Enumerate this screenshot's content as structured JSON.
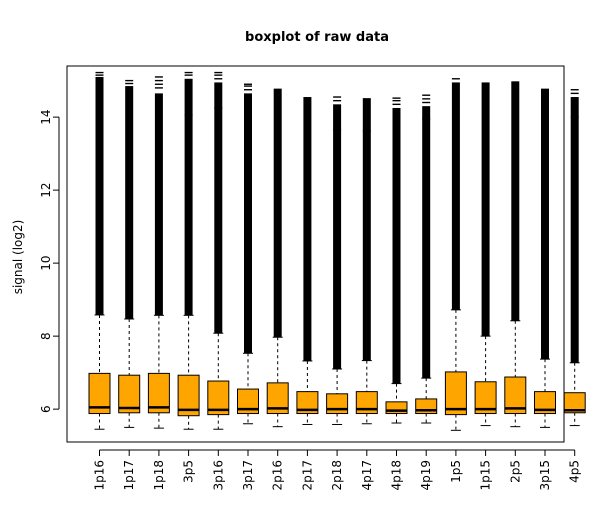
{
  "chart_data": {
    "type": "boxplot",
    "title": "boxplot of raw data",
    "xlabel": "",
    "ylabel": "signal (log2)",
    "ylim": [
      5.1,
      15.4
    ],
    "yticks": [
      6,
      8,
      10,
      12,
      14
    ],
    "grid": false,
    "box_color": "#FFA500",
    "categories": [
      "1p16",
      "1p17",
      "1p18",
      "3p5",
      "3p16",
      "3p17",
      "2p16",
      "2p17",
      "2p18",
      "4p17",
      "4p18",
      "4p19",
      "1p5",
      "1p15",
      "2p5",
      "3p15",
      "4p5"
    ],
    "boxes": [
      {
        "whisker_low": 5.45,
        "q1": 5.88,
        "median": 6.05,
        "q3": 6.98,
        "whisker_high": 8.58,
        "out_min": 8.58,
        "out_max": 15.1,
        "outliers_high": [
          14.5,
          15.15,
          15.22
        ]
      },
      {
        "whisker_low": 5.5,
        "q1": 5.9,
        "median": 6.03,
        "q3": 6.93,
        "whisker_high": 8.47,
        "out_min": 8.47,
        "out_max": 14.85,
        "outliers_high": [
          14.92,
          15.0
        ]
      },
      {
        "whisker_low": 5.48,
        "q1": 5.9,
        "median": 6.05,
        "q3": 6.98,
        "whisker_high": 8.57,
        "out_min": 8.57,
        "out_max": 14.65,
        "outliers_high": [
          14.8,
          14.9,
          15.0,
          15.1
        ]
      },
      {
        "whisker_low": 5.45,
        "q1": 5.82,
        "median": 5.98,
        "q3": 6.93,
        "whisker_high": 8.57,
        "out_min": 8.57,
        "out_max": 15.05,
        "outliers_high": [
          14.05,
          15.15,
          15.22
        ]
      },
      {
        "whisker_low": 5.45,
        "q1": 5.85,
        "median": 5.98,
        "q3": 6.77,
        "whisker_high": 8.08,
        "out_min": 8.08,
        "out_max": 14.95,
        "outliers_high": [
          14.25,
          15.05,
          15.15,
          15.22
        ]
      },
      {
        "whisker_low": 5.6,
        "q1": 5.88,
        "median": 6.0,
        "q3": 6.55,
        "whisker_high": 7.53,
        "out_min": 7.53,
        "out_max": 14.65,
        "outliers_high": [
          13.8,
          14.75,
          14.85,
          14.9
        ]
      },
      {
        "whisker_low": 5.52,
        "q1": 5.88,
        "median": 6.02,
        "q3": 6.72,
        "whisker_high": 7.97,
        "out_min": 7.97,
        "out_max": 14.78,
        "outliers_high": []
      },
      {
        "whisker_low": 5.58,
        "q1": 5.88,
        "median": 5.98,
        "q3": 6.48,
        "whisker_high": 7.32,
        "out_min": 7.32,
        "out_max": 14.55,
        "outliers_high": []
      },
      {
        "whisker_low": 5.58,
        "q1": 5.88,
        "median": 6.0,
        "q3": 6.42,
        "whisker_high": 7.1,
        "out_min": 7.1,
        "out_max": 14.35,
        "outliers_high": [
          13.65,
          14.45,
          14.55
        ]
      },
      {
        "whisker_low": 5.6,
        "q1": 5.88,
        "median": 6.0,
        "q3": 6.48,
        "whisker_high": 7.33,
        "out_min": 7.33,
        "out_max": 14.52,
        "outliers_high": [
          13.62
        ]
      },
      {
        "whisker_low": 5.62,
        "q1": 5.88,
        "median": 5.96,
        "q3": 6.2,
        "whisker_high": 6.7,
        "out_min": 6.7,
        "out_max": 14.25,
        "outliers_high": [
          13.95,
          14.35,
          14.45,
          14.52
        ]
      },
      {
        "whisker_low": 5.62,
        "q1": 5.88,
        "median": 5.97,
        "q3": 6.28,
        "whisker_high": 6.85,
        "out_min": 6.85,
        "out_max": 14.3,
        "outliers_high": [
          13.95,
          14.4,
          14.5,
          14.6
        ]
      },
      {
        "whisker_low": 5.42,
        "q1": 5.85,
        "median": 6.0,
        "q3": 7.02,
        "whisker_high": 8.72,
        "out_min": 8.72,
        "out_max": 14.95,
        "outliers_high": [
          15.05
        ]
      },
      {
        "whisker_low": 5.55,
        "q1": 5.88,
        "median": 6.0,
        "q3": 6.75,
        "whisker_high": 8.0,
        "out_min": 8.0,
        "out_max": 14.95,
        "outliers_high": []
      },
      {
        "whisker_low": 5.52,
        "q1": 5.88,
        "median": 6.02,
        "q3": 6.88,
        "whisker_high": 8.42,
        "out_min": 8.42,
        "out_max": 14.98,
        "outliers_high": []
      },
      {
        "whisker_low": 5.5,
        "q1": 5.88,
        "median": 5.98,
        "q3": 6.48,
        "whisker_high": 7.37,
        "out_min": 7.37,
        "out_max": 14.78,
        "outliers_high": []
      },
      {
        "whisker_low": 5.55,
        "q1": 5.9,
        "median": 5.97,
        "q3": 6.45,
        "whisker_high": 7.27,
        "out_min": 7.27,
        "out_max": 14.55,
        "outliers_high": [
          14.0,
          14.65,
          14.75
        ]
      }
    ]
  }
}
